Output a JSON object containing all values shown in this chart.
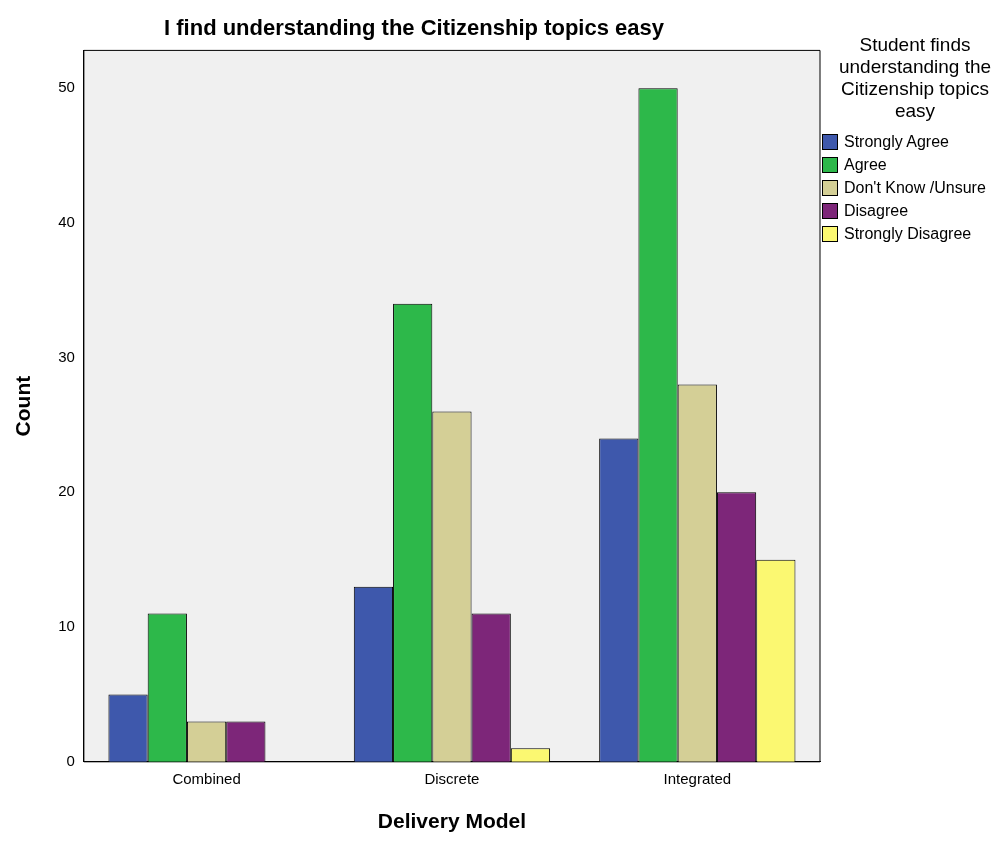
{
  "chart_data": {
    "type": "bar",
    "title": "I find understanding the Citizenship topics easy",
    "xlabel": "Delivery Model",
    "ylabel": "Count",
    "legend_title": "Student finds understanding the Citizenship topics easy",
    "categories": [
      "Combined",
      "Discrete",
      "Integrated"
    ],
    "series": [
      {
        "name": "Strongly Agree",
        "color": "#3e58ac",
        "values": [
          5,
          13,
          24
        ]
      },
      {
        "name": "Agree",
        "color": "#2db84a",
        "values": [
          11,
          34,
          50
        ]
      },
      {
        "name": "Don't Know /Unsure",
        "color": "#d4cf96",
        "values": [
          3,
          26,
          28
        ]
      },
      {
        "name": "Disagree",
        "color": "#7d2679",
        "values": [
          3,
          11,
          20
        ]
      },
      {
        "name": "Strongly Disagree",
        "color": "#fbf871",
        "values": [
          null,
          1,
          15
        ]
      }
    ],
    "ylim": [
      0,
      52.8
    ],
    "yticks": [
      0,
      10,
      20,
      30,
      40,
      50
    ],
    "grid": false,
    "legend": "right"
  }
}
